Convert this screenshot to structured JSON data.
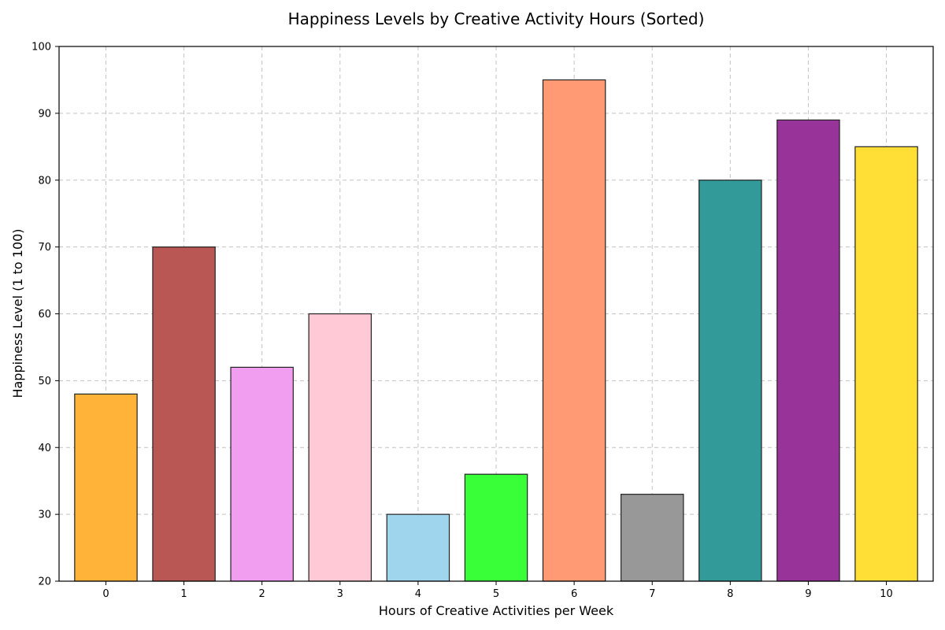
{
  "chart_data": {
    "type": "bar",
    "title": "Happiness Levels by Creative Activity Hours (Sorted)",
    "xlabel": "Hours of Creative Activities per Week",
    "ylabel": "Happiness Level (1 to 100)",
    "categories": [
      "0",
      "1",
      "2",
      "3",
      "4",
      "5",
      "6",
      "7",
      "8",
      "9",
      "10"
    ],
    "values": [
      48,
      70,
      52,
      60,
      30,
      36,
      95,
      33,
      80,
      89,
      85
    ],
    "colors": [
      "#ffb338",
      "#b85754",
      "#f19ef0",
      "#ffcad6",
      "#a0d6ed",
      "#38ff38",
      "#ff9a74",
      "#989898",
      "#329a99",
      "#983499",
      "#ffdf35"
    ],
    "ylim": [
      20,
      100
    ],
    "yticks": [
      20,
      30,
      40,
      50,
      60,
      70,
      80,
      90,
      100
    ],
    "grid": true
  }
}
